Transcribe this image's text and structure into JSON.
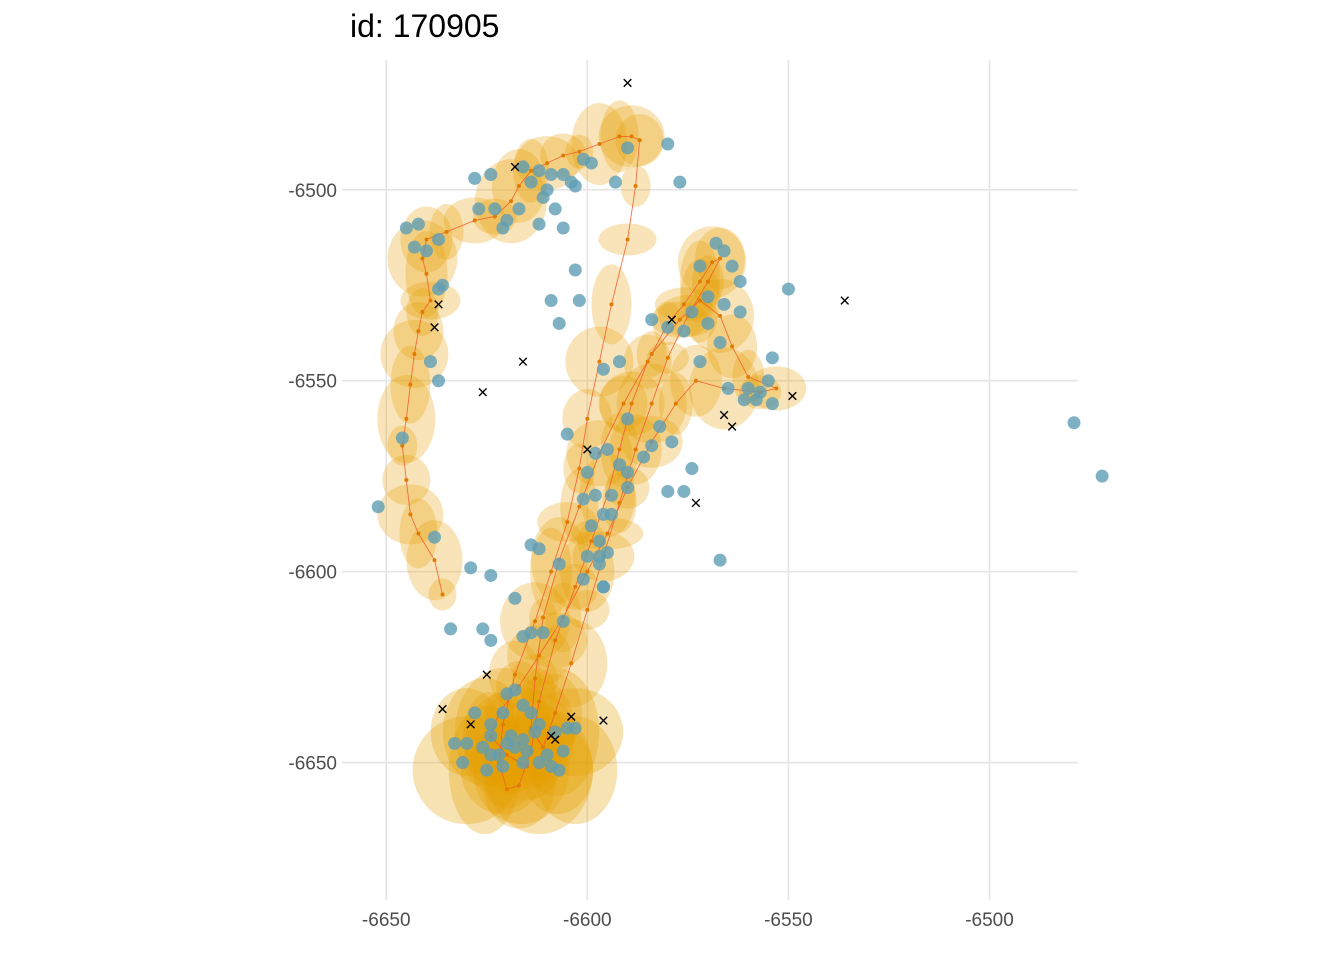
{
  "chart_data": {
    "type": "scatter",
    "title": "id: 170905",
    "xlabel": "",
    "ylabel": "",
    "xlim": [
      -6661,
      -6478
    ],
    "ylim": [
      -6686,
      -6466
    ],
    "grid": true,
    "legend": "none",
    "x_ticks": [
      {
        "value": -6650,
        "label": "-6650"
      },
      {
        "value": -6600,
        "label": "-6600"
      },
      {
        "value": -6550,
        "label": "-6550"
      },
      {
        "value": -6500,
        "label": "-6500"
      }
    ],
    "y_ticks": [
      {
        "value": -6500,
        "label": "-6500"
      },
      {
        "value": -6550,
        "label": "-6550"
      },
      {
        "value": -6600,
        "label": "-6600"
      },
      {
        "value": -6650,
        "label": "-6650"
      }
    ],
    "colors": {
      "ellipse": "#e69f00",
      "track": "#f15a2b",
      "track_points": "#e07b00",
      "observations": "#5f9db5",
      "outliers": "#000000",
      "grid": "#e5e5e5"
    },
    "series": [
      {
        "name": "observations",
        "points": [
          [
            -6652,
            -6583
          ],
          [
            -6646,
            -6565
          ],
          [
            -6645,
            -6510
          ],
          [
            -6643,
            -6515
          ],
          [
            -6642,
            -6509
          ],
          [
            -6640,
            -6516
          ],
          [
            -6637,
            -6513
          ],
          [
            -6637,
            -6526
          ],
          [
            -6636,
            -6525
          ],
          [
            -6639,
            -6545
          ],
          [
            -6637,
            -6550
          ],
          [
            -6638,
            -6591
          ],
          [
            -6634,
            -6615
          ],
          [
            -6629,
            -6599
          ],
          [
            -6624,
            -6601
          ],
          [
            -6628,
            -6497
          ],
          [
            -6624,
            -6496
          ],
          [
            -6620,
            -6508
          ],
          [
            -6616,
            -6494
          ],
          [
            -6612,
            -6495
          ],
          [
            -6609,
            -6496
          ],
          [
            -6604,
            -6498
          ],
          [
            -6601,
            -6492
          ],
          [
            -6599,
            -6493
          ],
          [
            -6614,
            -6498
          ],
          [
            -6611,
            -6502
          ],
          [
            -6608,
            -6505
          ],
          [
            -6603,
            -6499
          ],
          [
            -6593,
            -6498
          ],
          [
            -6590,
            -6489
          ],
          [
            -6580,
            -6488
          ],
          [
            -6577,
            -6498
          ],
          [
            -6623,
            -6505
          ],
          [
            -6617,
            -6505
          ],
          [
            -6612,
            -6509
          ],
          [
            -6606,
            -6510
          ],
          [
            -6627,
            -6505
          ],
          [
            -6621,
            -6510
          ],
          [
            -6603,
            -6521
          ],
          [
            -6609,
            -6529
          ],
          [
            -6607,
            -6535
          ],
          [
            -6602,
            -6529
          ],
          [
            -6568,
            -6514
          ],
          [
            -6566,
            -6516
          ],
          [
            -6564,
            -6520
          ],
          [
            -6572,
            -6520
          ],
          [
            -6570,
            -6528
          ],
          [
            -6562,
            -6524
          ],
          [
            -6566,
            -6530
          ],
          [
            -6570,
            -6535
          ],
          [
            -6567,
            -6540
          ],
          [
            -6574,
            -6532
          ],
          [
            -6562,
            -6532
          ],
          [
            -6572,
            -6545
          ],
          [
            -6576,
            -6537
          ],
          [
            -6580,
            -6536
          ],
          [
            -6584,
            -6534
          ],
          [
            -6592,
            -6545
          ],
          [
            -6596,
            -6547
          ],
          [
            -6550,
            -6526
          ],
          [
            -6554,
            -6544
          ],
          [
            -6565,
            -6552
          ],
          [
            -6560,
            -6552
          ],
          [
            -6557,
            -6553
          ],
          [
            -6555,
            -6550
          ],
          [
            -6558,
            -6555
          ],
          [
            -6554,
            -6556
          ],
          [
            -6561,
            -6555
          ],
          [
            -6605,
            -6564
          ],
          [
            -6590,
            -6560
          ],
          [
            -6582,
            -6562
          ],
          [
            -6579,
            -6566
          ],
          [
            -6574,
            -6573
          ],
          [
            -6576,
            -6579
          ],
          [
            -6567,
            -6597
          ],
          [
            -6600,
            -6574
          ],
          [
            -6598,
            -6569
          ],
          [
            -6595,
            -6568
          ],
          [
            -6592,
            -6572
          ],
          [
            -6590,
            -6578
          ],
          [
            -6594,
            -6580
          ],
          [
            -6598,
            -6580
          ],
          [
            -6601,
            -6581
          ],
          [
            -6596,
            -6585
          ],
          [
            -6594,
            -6585
          ],
          [
            -6599,
            -6588
          ],
          [
            -6590,
            -6574
          ],
          [
            -6586,
            -6570
          ],
          [
            -6584,
            -6567
          ],
          [
            -6580,
            -6579
          ],
          [
            -6597,
            -6592
          ],
          [
            -6595,
            -6595
          ],
          [
            -6600,
            -6596
          ],
          [
            -6597,
            -6598
          ],
          [
            -6601,
            -6602
          ],
          [
            -6596,
            -6604
          ],
          [
            -6612,
            -6594
          ],
          [
            -6614,
            -6593
          ],
          [
            -6607,
            -6598
          ],
          [
            -6618,
            -6607
          ],
          [
            -6614,
            -6616
          ],
          [
            -6616,
            -6617
          ],
          [
            -6626,
            -6615
          ],
          [
            -6624,
            -6618
          ],
          [
            -6611,
            -6616
          ],
          [
            -6606,
            -6613
          ],
          [
            -6597,
            -6596
          ],
          [
            -6596,
            -6604
          ],
          [
            -6628,
            -6637
          ],
          [
            -6624,
            -6643
          ],
          [
            -6630,
            -6645
          ],
          [
            -6633,
            -6645
          ],
          [
            -6631,
            -6650
          ],
          [
            -6622,
            -6648
          ],
          [
            -6618,
            -6646
          ],
          [
            -6621,
            -6651
          ],
          [
            -6616,
            -6650
          ],
          [
            -6610,
            -6648
          ],
          [
            -6606,
            -6647
          ],
          [
            -6603,
            -6641
          ],
          [
            -6605,
            -6641
          ],
          [
            -6608,
            -6642
          ],
          [
            -6612,
            -6640
          ],
          [
            -6616,
            -6635
          ],
          [
            -6620,
            -6632
          ],
          [
            -6613,
            -6642
          ],
          [
            -6619,
            -6643
          ],
          [
            -6624,
            -6640
          ],
          [
            -6626,
            -6646
          ],
          [
            -6609,
            -6651
          ],
          [
            -6612,
            -6650
          ],
          [
            -6607,
            -6652
          ],
          [
            -6615,
            -6647
          ],
          [
            -6620,
            -6645
          ],
          [
            -6624,
            -6648
          ],
          [
            -6625,
            -6652
          ],
          [
            -6616,
            -6644
          ],
          [
            -6614,
            -6637
          ],
          [
            -6618,
            -6631
          ],
          [
            -6621,
            -6637
          ],
          [
            -6479,
            -6561
          ],
          [
            -6472,
            -6575
          ],
          [
            -6610,
            -6500
          ],
          [
            -6606,
            -6496
          ]
        ]
      },
      {
        "name": "track",
        "points": [
          [
            -6636,
            -6606
          ],
          [
            -6638,
            -6597
          ],
          [
            -6642,
            -6590
          ],
          [
            -6644,
            -6585
          ],
          [
            -6645,
            -6576
          ],
          [
            -6646,
            -6567
          ],
          [
            -6645,
            -6560
          ],
          [
            -6644,
            -6551
          ],
          [
            -6643,
            -6543
          ],
          [
            -6642,
            -6537
          ],
          [
            -6641,
            -6532
          ],
          [
            -6639,
            -6529
          ],
          [
            -6640,
            -6522
          ],
          [
            -6641,
            -6518
          ],
          [
            -6640,
            -6513
          ],
          [
            -6635,
            -6511
          ],
          [
            -6628,
            -6508
          ],
          [
            -6623,
            -6507
          ],
          [
            -6619,
            -6503
          ],
          [
            -6617,
            -6499
          ],
          [
            -6614,
            -6495
          ],
          [
            -6610,
            -6493
          ],
          [
            -6606,
            -6491
          ],
          [
            -6602,
            -6490
          ],
          [
            -6597,
            -6488
          ],
          [
            -6592,
            -6486
          ],
          [
            -6589,
            -6486
          ],
          [
            -6587,
            -6487
          ],
          [
            -6588,
            -6499
          ],
          [
            -6590,
            -6513
          ],
          [
            -6594,
            -6530
          ],
          [
            -6597,
            -6545
          ],
          [
            -6600,
            -6560
          ],
          [
            -6602,
            -6573
          ],
          [
            -6605,
            -6587
          ],
          [
            -6609,
            -6600
          ],
          [
            -6613,
            -6613
          ],
          [
            -6618,
            -6627
          ],
          [
            -6621,
            -6640
          ],
          [
            -6622,
            -6650
          ],
          [
            -6620,
            -6657
          ],
          [
            -6617,
            -6656
          ],
          [
            -6614,
            -6647
          ],
          [
            -6612,
            -6634
          ],
          [
            -6608,
            -6618
          ],
          [
            -6603,
            -6604
          ],
          [
            -6599,
            -6592
          ],
          [
            -6595,
            -6580
          ],
          [
            -6592,
            -6568
          ],
          [
            -6589,
            -6556
          ],
          [
            -6585,
            -6545
          ],
          [
            -6580,
            -6535
          ],
          [
            -6576,
            -6530
          ],
          [
            -6572,
            -6524
          ],
          [
            -6569,
            -6519
          ],
          [
            -6567,
            -6518
          ],
          [
            -6570,
            -6524
          ],
          [
            -6575,
            -6533
          ],
          [
            -6580,
            -6544
          ],
          [
            -6584,
            -6556
          ],
          [
            -6588,
            -6568
          ],
          [
            -6592,
            -6582
          ],
          [
            -6596,
            -6596
          ],
          [
            -6600,
            -6610
          ],
          [
            -6604,
            -6624
          ],
          [
            -6608,
            -6637
          ],
          [
            -6611,
            -6646
          ],
          [
            -6614,
            -6641
          ],
          [
            -6613,
            -6628
          ],
          [
            -6611,
            -6612
          ],
          [
            -6607,
            -6597
          ],
          [
            -6602,
            -6583
          ],
          [
            -6597,
            -6569
          ],
          [
            -6591,
            -6556
          ],
          [
            -6584,
            -6543
          ],
          [
            -6577,
            -6534
          ],
          [
            -6572,
            -6529
          ],
          [
            -6567,
            -6533
          ],
          [
            -6564,
            -6541
          ],
          [
            -6560,
            -6549
          ],
          [
            -6553,
            -6552
          ],
          [
            -6557,
            -6553
          ],
          [
            -6566,
            -6552
          ],
          [
            -6573,
            -6550
          ],
          [
            -6578,
            -6556
          ],
          [
            -6584,
            -6566
          ],
          [
            -6590,
            -6578
          ],
          [
            -6595,
            -6590
          ],
          [
            -6600,
            -6600
          ],
          [
            -6606,
            -6612
          ],
          [
            -6612,
            -6622
          ],
          [
            -6617,
            -6630
          ],
          [
            -6622,
            -6637
          ],
          [
            -6624,
            -6643
          ],
          [
            -6620,
            -6648
          ],
          [
            -6615,
            -6651
          ]
        ]
      },
      {
        "name": "outliers",
        "points": [
          [
            -6590,
            -6472
          ],
          [
            -6618,
            -6494
          ],
          [
            -6637,
            -6530
          ],
          [
            -6638,
            -6536
          ],
          [
            -6616,
            -6545
          ],
          [
            -6626,
            -6553
          ],
          [
            -6536,
            -6529
          ],
          [
            -6579,
            -6534
          ],
          [
            -6566,
            -6559
          ],
          [
            -6564,
            -6562
          ],
          [
            -6549,
            -6554
          ],
          [
            -6600,
            -6568
          ],
          [
            -6573,
            -6582
          ],
          [
            -6625,
            -6627
          ],
          [
            -6636,
            -6636
          ],
          [
            -6629,
            -6640
          ],
          [
            -6604,
            -6638
          ],
          [
            -6596,
            -6639
          ],
          [
            -6609,
            -6643
          ],
          [
            -6608,
            -6644
          ]
        ]
      }
    ]
  }
}
